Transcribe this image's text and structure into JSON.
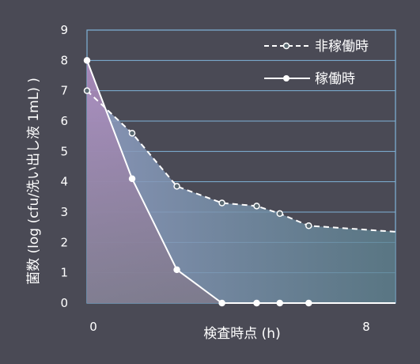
{
  "chart_data": {
    "type": "line",
    "xlabel": "検査時点 (h)",
    "ylabel": "菌数 (log (cfu/洗い出し液 1mL) )",
    "xlim": [
      0,
      8
    ],
    "ylim": [
      0,
      9
    ],
    "x_ticks": [
      "0",
      "8"
    ],
    "y_ticks": [
      "0",
      "1",
      "2",
      "3",
      "4",
      "5",
      "6",
      "7",
      "8",
      "9"
    ],
    "grid": true,
    "legend_position": "top-right",
    "series": [
      {
        "name": "非稼働時",
        "style": "dashed",
        "marker": "open-circle",
        "color": "#ffffff",
        "fill": "#6f8fa0",
        "x": [
          0,
          1.17,
          2.33,
          3.5,
          4.4,
          5.0,
          5.75,
          8
        ],
        "y": [
          7.0,
          5.6,
          3.85,
          3.3,
          3.2,
          2.95,
          2.55,
          2.35
        ]
      },
      {
        "name": "稼働時",
        "style": "solid",
        "marker": "filled-circle",
        "color": "#ffffff",
        "fill": "#9a8fb4",
        "x": [
          0,
          1.17,
          2.33,
          3.5,
          4.4,
          5.0,
          5.75,
          8
        ],
        "y": [
          8.0,
          4.1,
          1.1,
          0.0,
          0.0,
          0.0,
          0.0,
          0.0
        ]
      }
    ]
  }
}
